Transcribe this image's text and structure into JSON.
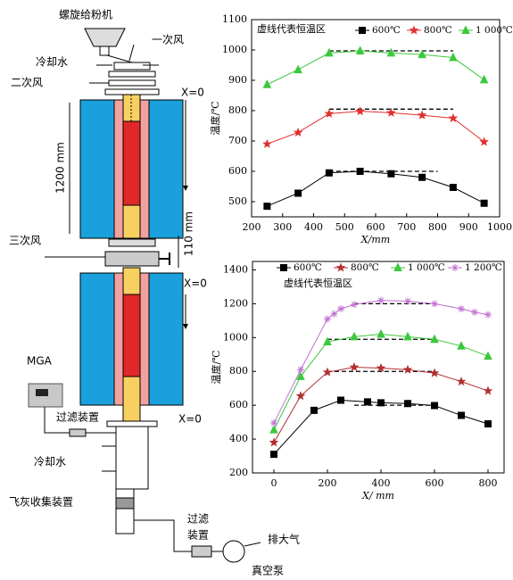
{
  "diagram": {
    "feeder": "螺旋给粉机",
    "primary_air": "一次风",
    "cooling_water_top": "冷却水",
    "secondary_air": "二次风",
    "x0_top": "X=0",
    "length_1200": "1200 mm",
    "tertiary_air": "三次风",
    "length_110": "110 mm",
    "x0_mid": "X=0",
    "mga": "MGA",
    "filter_left": "过滤装置",
    "x0_bottom": "X=0",
    "cooling_water_bottom": "冷却水",
    "ash_collector": "飞灰收集装置",
    "filter_right": [
      "过滤",
      "装置"
    ],
    "exhaust": "排大气",
    "vacuum_pump": "真空泵"
  },
  "chart_data": [
    {
      "type": "line",
      "annotation": "虚线代表恒温区",
      "xlabel": "X/mm",
      "ylabel": "温度/℃",
      "xlim": [
        200,
        1000
      ],
      "ylim": [
        450,
        1100
      ],
      "xticks": [
        200,
        300,
        400,
        500,
        600,
        700,
        800,
        900,
        1000
      ],
      "yticks": [
        500,
        600,
        700,
        800,
        900,
        1000,
        1100
      ],
      "series": [
        {
          "name": "600℃",
          "color": "#000000",
          "marker": "square",
          "x": [
            250,
            350,
            450,
            550,
            650,
            750,
            850,
            950
          ],
          "values": [
            485,
            528,
            595,
            600,
            592,
            580,
            547,
            495
          ]
        },
        {
          "name": "800℃",
          "color": "#e03030",
          "marker": "star",
          "x": [
            250,
            350,
            450,
            550,
            650,
            750,
            850,
            950
          ],
          "values": [
            690,
            728,
            790,
            798,
            793,
            785,
            775,
            697
          ]
        },
        {
          "name": "1 000℃",
          "color": "#3cc83c",
          "marker": "triangle",
          "x": [
            250,
            350,
            450,
            550,
            650,
            750,
            850,
            950
          ],
          "values": [
            886,
            935,
            990,
            997,
            990,
            985,
            975,
            902
          ]
        }
      ],
      "reference_lines": [
        {
          "y": 600,
          "x": [
            450,
            800
          ]
        },
        {
          "y": 805,
          "x": [
            450,
            850
          ]
        },
        {
          "y": 997,
          "x": [
            450,
            850
          ]
        }
      ]
    },
    {
      "type": "line",
      "annotation": "虚线代表恒温区",
      "xlabel": "X/ mm",
      "ylabel": "温度/℃",
      "xlim": [
        -80,
        860
      ],
      "ylim": [
        200,
        1450
      ],
      "xticks": [
        0,
        200,
        400,
        600,
        800
      ],
      "yticks": [
        200,
        400,
        600,
        800,
        1000,
        1200,
        1400
      ],
      "series": [
        {
          "name": "600℃",
          "color": "#000000",
          "marker": "square",
          "x": [
            0,
            150,
            250,
            350,
            400,
            500,
            600,
            700,
            800
          ],
          "values": [
            310,
            570,
            630,
            620,
            615,
            610,
            598,
            540,
            490
          ]
        },
        {
          "name": "800℃",
          "color": "#b03030",
          "marker": "star",
          "x": [
            0,
            100,
            200,
            300,
            400,
            500,
            600,
            700,
            800
          ],
          "values": [
            380,
            655,
            795,
            825,
            820,
            810,
            790,
            740,
            685
          ]
        },
        {
          "name": "1 000℃",
          "color": "#3cc83c",
          "marker": "triangle",
          "x": [
            0,
            100,
            200,
            300,
            400,
            500,
            600,
            700,
            800
          ],
          "values": [
            455,
            770,
            975,
            1005,
            1020,
            1005,
            990,
            950,
            890
          ]
        },
        {
          "name": "1 200℃",
          "color": "#c070d0",
          "marker": "asterisk",
          "x": [
            0,
            100,
            200,
            225,
            250,
            300,
            400,
            500,
            600,
            700,
            750,
            800
          ],
          "values": [
            495,
            810,
            1110,
            1140,
            1170,
            1195,
            1220,
            1215,
            1200,
            1170,
            1150,
            1135
          ]
        }
      ],
      "reference_lines": [
        {
          "y": 600,
          "x": [
            300,
            600
          ]
        },
        {
          "y": 800,
          "x": [
            200,
            600
          ]
        },
        {
          "y": 990,
          "x": [
            200,
            600
          ]
        },
        {
          "y": 1200,
          "x": [
            300,
            600
          ]
        }
      ]
    }
  ]
}
